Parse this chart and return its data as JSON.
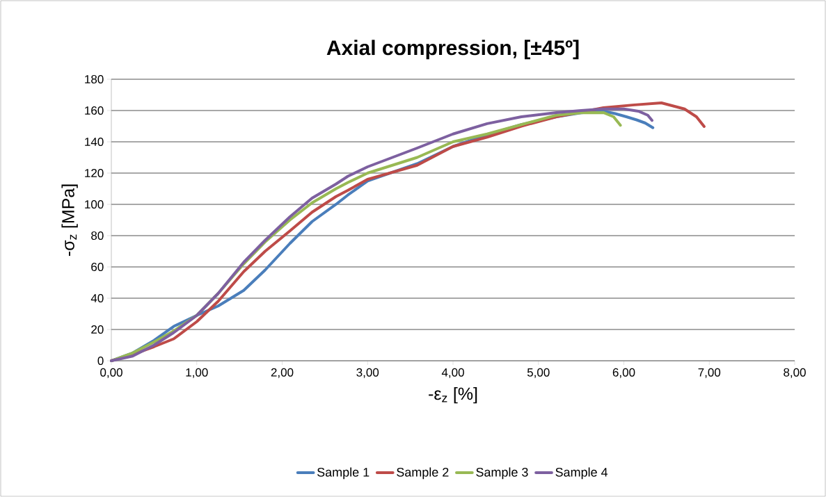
{
  "chart_data": {
    "type": "line",
    "title": "Axial compression, [±45º]",
    "xlabel": "-ε$_{z}$ [%]",
    "ylabel": "-σ$_{z}$ [MPa]",
    "xlim": [
      0,
      8
    ],
    "ylim": [
      0,
      180
    ],
    "xticks": [
      {
        "value": 0,
        "label": "0,00"
      },
      {
        "value": 1,
        "label": "1,00"
      },
      {
        "value": 2,
        "label": "2,00"
      },
      {
        "value": 3,
        "label": "3,00"
      },
      {
        "value": 4,
        "label": "4,00"
      },
      {
        "value": 5,
        "label": "5,00"
      },
      {
        "value": 6,
        "label": "6,00"
      },
      {
        "value": 7,
        "label": "7,00"
      },
      {
        "value": 8,
        "label": "8,00"
      }
    ],
    "yticks": [
      0,
      20,
      40,
      60,
      80,
      100,
      120,
      140,
      160,
      180
    ],
    "grid": "y",
    "legend": "bottom",
    "series": [
      {
        "name": "Sample 1",
        "color": "#4a7ebb",
        "x": [
          0,
          0.25,
          0.5,
          0.73,
          1.0,
          1.25,
          1.55,
          1.8,
          2.09,
          2.35,
          2.63,
          2.77,
          3.0,
          3.58,
          4.0,
          4.4,
          4.8,
          5.21,
          5.5,
          5.76,
          5.9,
          6.03,
          6.15,
          6.25,
          6.34
        ],
        "values": [
          0,
          5,
          13,
          22,
          29,
          35,
          45,
          58,
          75,
          89,
          100,
          106,
          115,
          126,
          137,
          144.5,
          151,
          156,
          158.5,
          159.6,
          158,
          156,
          154,
          152,
          149
        ]
      },
      {
        "name": "Sample 2",
        "color": "#be4b48",
        "x": [
          0,
          0.25,
          0.5,
          0.73,
          1.0,
          1.25,
          1.55,
          1.8,
          2.09,
          2.35,
          2.63,
          2.77,
          3.0,
          3.58,
          4.0,
          4.4,
          4.8,
          5.21,
          5.5,
          5.76,
          6.1,
          6.44,
          6.71,
          6.85,
          6.94
        ],
        "values": [
          0,
          4,
          9,
          14,
          25,
          38,
          57,
          70,
          83,
          95,
          105,
          109,
          116,
          125,
          137,
          143,
          150,
          156,
          159,
          161.8,
          163.5,
          164.9,
          161,
          156,
          149.8
        ]
      },
      {
        "name": "Sample 3",
        "color": "#98b954",
        "x": [
          0,
          0.25,
          0.5,
          0.73,
          1.0,
          1.25,
          1.55,
          1.8,
          2.09,
          2.35,
          2.63,
          2.77,
          3.0,
          3.58,
          4.0,
          4.4,
          4.8,
          5.21,
          5.5,
          5.76,
          5.88,
          5.96
        ],
        "values": [
          0,
          5,
          12,
          19,
          29,
          43,
          62,
          76,
          90,
          101,
          110,
          114,
          120,
          130,
          140,
          145,
          151,
          157,
          158.5,
          158.7,
          156,
          150.6
        ]
      },
      {
        "name": "Sample 4",
        "color": "#7d60a0",
        "x": [
          0,
          0.25,
          0.5,
          0.73,
          1.0,
          1.25,
          1.55,
          1.8,
          2.09,
          2.35,
          2.63,
          2.77,
          3.0,
          3.58,
          4.0,
          4.4,
          4.8,
          5.21,
          5.5,
          5.76,
          6.0,
          6.17,
          6.28,
          6.33
        ],
        "values": [
          0,
          3,
          10,
          18,
          29,
          43,
          63,
          77,
          92,
          104,
          113,
          118,
          124,
          136,
          145,
          151.6,
          156,
          158.7,
          160,
          161,
          161,
          159.6,
          157,
          153.7
        ]
      }
    ]
  }
}
